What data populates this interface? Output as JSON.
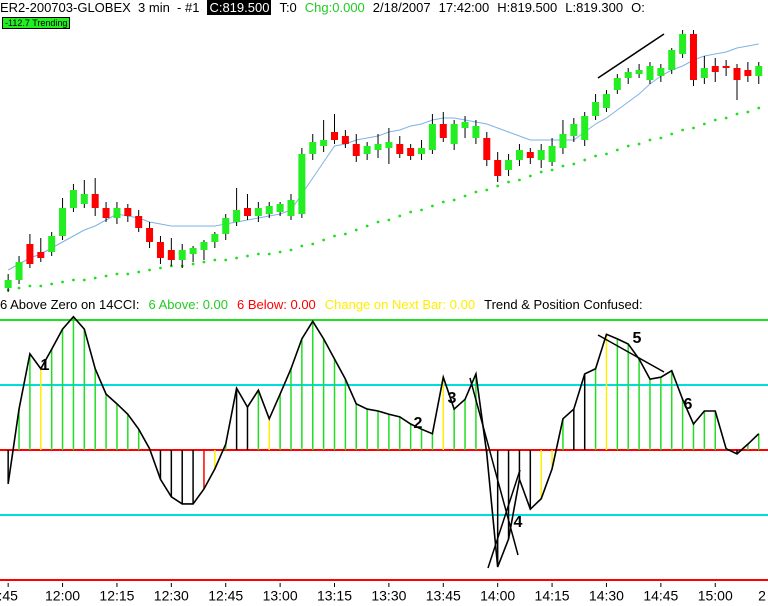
{
  "header": {
    "symbol": "ER2-200703-GLOBEX  3 min  - #1",
    "close": "C:819.500",
    "ticks": "T:0",
    "change": "Chg:0.000",
    "date": "2/18/2007",
    "time": "17:42:00",
    "high": "H:819.500",
    "low": "L:819.300",
    "open": "O:",
    "badge": "-112.7 Trending"
  },
  "chart_data": [
    {
      "type": "candlestick",
      "up_color": "#22ee22",
      "down_color": "#ff0000",
      "ylim": [
        806,
        821
      ],
      "xlim": [
        -0.75,
        69.85
      ],
      "open": [
        806.6,
        807.0,
        808.8,
        808.4,
        808.4,
        809.2,
        810.6,
        810.8,
        811.3,
        810.6,
        810.1,
        810.6,
        810.2,
        809.6,
        808.9,
        808.5,
        808.0,
        808.3,
        808.5,
        808.9,
        809.3,
        809.9,
        810.6,
        810.2,
        810.3,
        810.4,
        810.2,
        810.3,
        813.3,
        813.7,
        814.4,
        814.2,
        813.8,
        813.3,
        813.5,
        813.6,
        813.8,
        813.6,
        813.3,
        813.5,
        814.8,
        813.8,
        814.6,
        814.1,
        814.1,
        813.0,
        812.5,
        813.0,
        813.4,
        813.0,
        812.9,
        813.6,
        814.2,
        814.0,
        815.2,
        815.6,
        816.5,
        817.1,
        817.3,
        817.0,
        817.2,
        817.5,
        818.3,
        819.3,
        817.1,
        817.7,
        817.7,
        817.6,
        817.5,
        817.2
      ],
      "high": [
        807.3,
        808.2,
        809.3,
        809.1,
        809.4,
        811.1,
        811.8,
        812.0,
        812.1,
        810.9,
        810.9,
        810.8,
        810.5,
        809.9,
        809.2,
        809.1,
        808.8,
        808.7,
        809.0,
        809.4,
        810.3,
        811.6,
        811.3,
        810.9,
        810.9,
        810.9,
        811.3,
        813.6,
        814.3,
        815.0,
        815.3,
        814.5,
        814.3,
        813.9,
        814.3,
        814.6,
        814.2,
        813.8,
        814.0,
        815.3,
        815.4,
        815.0,
        815.2,
        815.0,
        814.4,
        813.4,
        813.3,
        813.8,
        813.6,
        813.8,
        814.1,
        815.0,
        815.1,
        815.4,
        816.3,
        816.5,
        817.3,
        817.6,
        817.8,
        817.9,
        817.8,
        818.6,
        819.5,
        819.5,
        818.2,
        818.1,
        818.0,
        817.8,
        817.9,
        817.9
      ],
      "low": [
        806.4,
        806.8,
        807.6,
        807.9,
        808.2,
        809.0,
        810.4,
        810.6,
        810.2,
        809.9,
        809.8,
        809.9,
        809.4,
        808.6,
        807.8,
        807.7,
        807.6,
        807.9,
        808.0,
        808.6,
        809.0,
        809.7,
        810.0,
        809.9,
        810.1,
        810.2,
        810.0,
        810.1,
        813.0,
        813.4,
        813.8,
        813.6,
        812.9,
        813.0,
        813.1,
        812.8,
        813.1,
        813.0,
        813.0,
        813.3,
        813.9,
        813.5,
        814.1,
        813.8,
        812.7,
        811.9,
        812.2,
        812.7,
        812.8,
        812.6,
        812.7,
        813.3,
        813.9,
        813.7,
        815.0,
        815.4,
        816.3,
        816.8,
        817.1,
        816.8,
        816.9,
        817.3,
        818.1,
        816.7,
        816.8,
        816.9,
        817.2,
        816.0,
        816.9,
        816.8
      ],
      "close": [
        807.0,
        807.9,
        807.8,
        808.1,
        809.2,
        810.6,
        811.5,
        811.3,
        810.6,
        810.1,
        810.6,
        810.2,
        809.6,
        808.9,
        808.1,
        808.0,
        808.5,
        808.6,
        808.9,
        809.3,
        810.1,
        810.5,
        810.2,
        810.6,
        810.7,
        810.8,
        811.0,
        813.3,
        813.9,
        814.0,
        814.0,
        813.8,
        813.2,
        813.7,
        813.8,
        813.9,
        813.3,
        813.2,
        813.6,
        814.8,
        814.1,
        814.8,
        814.9,
        814.7,
        813.0,
        812.2,
        813.0,
        813.5,
        813.1,
        813.5,
        813.7,
        814.3,
        814.8,
        815.2,
        815.9,
        816.3,
        817.1,
        817.4,
        817.5,
        817.7,
        817.6,
        818.5,
        819.3,
        817.0,
        817.6,
        817.4,
        817.6,
        817.0,
        817.2,
        817.7
      ],
      "ma": {
        "color": "#7fb2e6",
        "values": [
          807.5,
          807.8,
          808.1,
          808.3,
          808.6,
          808.9,
          809.2,
          809.5,
          809.7,
          810.0,
          810.3,
          810.2,
          810.1,
          809.9,
          809.8,
          809.7,
          809.7,
          809.7,
          809.7,
          809.7,
          809.8,
          809.9,
          810.0,
          810.1,
          810.2,
          810.3,
          810.5,
          811.3,
          812.1,
          812.9,
          813.7,
          813.8,
          814.0,
          814.1,
          814.2,
          814.4,
          814.5,
          814.7,
          814.8,
          815.0,
          815.1,
          815.1,
          815.0,
          814.9,
          814.8,
          814.6,
          814.4,
          814.2,
          814.0,
          814.0,
          814.0,
          814.0,
          814.0,
          814.4,
          814.8,
          815.1,
          815.5,
          815.9,
          816.3,
          816.8,
          817.2,
          817.5,
          817.7,
          818.0,
          818.2,
          818.3,
          818.4,
          818.6,
          818.7,
          818.8
        ]
      },
      "stop": {
        "color": "#22dd22",
        "values": [
          806.5,
          806.6,
          806.7,
          806.7,
          806.8,
          806.9,
          807.0,
          807.0,
          807.1,
          807.2,
          807.3,
          807.3,
          807.4,
          807.5,
          807.6,
          807.7,
          807.7,
          807.8,
          807.9,
          808.0,
          808.0,
          808.1,
          808.2,
          808.3,
          808.3,
          808.4,
          808.5,
          808.7,
          808.8,
          809.0,
          809.2,
          809.3,
          809.5,
          809.7,
          809.9,
          810.0,
          810.2,
          810.4,
          810.5,
          810.7,
          810.9,
          811.0,
          811.2,
          811.4,
          811.5,
          811.7,
          811.9,
          812.0,
          812.2,
          812.4,
          812.5,
          812.7,
          812.8,
          813.0,
          813.2,
          813.3,
          813.5,
          813.7,
          813.8,
          814.0,
          814.1,
          814.3,
          814.5,
          814.6,
          814.8,
          815.0,
          815.1,
          815.3,
          815.4,
          815.6
        ]
      }
    },
    {
      "type": "cci",
      "xlim": [
        -0.75,
        69.85
      ],
      "ylim": [
        -200,
        200
      ],
      "yticks": [
        -200,
        -100,
        0,
        100,
        200
      ],
      "level_colors": [
        "#ff0000",
        "#00dddd",
        "#ff0000",
        "#00dddd",
        "#22dd22"
      ],
      "line_color": "#000000",
      "header": [
        {
          "text": "6 Above Zero on 14CCI:",
          "color": "#000000"
        },
        {
          "text": "6 Above: 0.00",
          "color": "#22cc22"
        },
        {
          "text": "6 Below: 0.00",
          "color": "#ff0000"
        },
        {
          "text": "Change on Next Bar: 0.00",
          "color": "#ffee00"
        },
        {
          "text": "Trend & Position Confused:",
          "color": "#000000"
        }
      ],
      "values": [
        -52,
        63,
        148,
        125,
        155,
        186,
        205,
        186,
        125,
        86,
        71,
        55,
        32,
        2,
        -45,
        -72,
        -83,
        -83,
        -60,
        -29,
        9,
        95,
        66,
        92,
        48,
        86,
        125,
        171,
        198,
        171,
        140,
        109,
        71,
        63,
        60,
        55,
        51,
        40,
        32,
        25,
        112,
        63,
        78,
        117,
        -6,
        -180,
        -137,
        -45,
        -91,
        -75,
        -29,
        48,
        63,
        117,
        125,
        178,
        171,
        163,
        140,
        109,
        112,
        122,
        78,
        40,
        60,
        60,
        2,
        -6,
        9,
        25
      ],
      "bar_colors": [
        "#000000",
        "#22dd22",
        "#22dd22",
        "#ffee00",
        "#22dd22",
        "#22dd22",
        "#22dd22",
        "#22dd22",
        "#22dd22",
        "#22dd22",
        "#22dd22",
        "#22dd22",
        "#22dd22",
        "#22dd22",
        "#000000",
        "#000000",
        "#000000",
        "#000000",
        "#ff0000",
        "#ffee00",
        "#22dd22",
        "#000000",
        "#000000",
        "#22dd22",
        "#ffee00",
        "#22dd22",
        "#22dd22",
        "#22dd22",
        "#22dd22",
        "#22dd22",
        "#22dd22",
        "#22dd22",
        "#22dd22",
        "#22dd22",
        "#22dd22",
        "#22dd22",
        "#22dd22",
        "#22dd22",
        "#22dd22",
        "#22dd22",
        "#ffee00",
        "#22dd22",
        "#22dd22",
        "#22dd22",
        "#000000",
        "#000000",
        "#000000",
        "#000000",
        "#000000",
        "#ffee00",
        "#ffee00",
        "#22dd22",
        "#000000",
        "#000000",
        "#22dd22",
        "#ffee00",
        "#22dd22",
        "#22dd22",
        "#22dd22",
        "#22dd22",
        "#22dd22",
        "#22dd22",
        "#22dd22",
        "#22dd22",
        "#22dd22",
        "#22dd22",
        "#22dd22",
        "#000000",
        "#22dd22",
        "#22dd22"
      ],
      "annotations": [
        "1",
        "2",
        "3",
        "4",
        "5",
        "6"
      ],
      "xticks": [
        {
          "value": 0,
          "label": ":45"
        },
        {
          "value": 5,
          "label": "12:00"
        },
        {
          "value": 10,
          "label": "12:15"
        },
        {
          "value": 15,
          "label": "12:30"
        },
        {
          "value": 20,
          "label": "12:45"
        },
        {
          "value": 25,
          "label": "13:00"
        },
        {
          "value": 30,
          "label": "13:15"
        },
        {
          "value": 35,
          "label": "13:30"
        },
        {
          "value": 40,
          "label": "13:45"
        },
        {
          "value": 45,
          "label": "14:00"
        },
        {
          "value": 50,
          "label": "14:15"
        },
        {
          "value": 55,
          "label": "14:30"
        },
        {
          "value": 60,
          "label": "14:45"
        },
        {
          "value": 65,
          "label": "15:00"
        },
        {
          "value": 70,
          "label": "2"
        }
      ]
    }
  ]
}
